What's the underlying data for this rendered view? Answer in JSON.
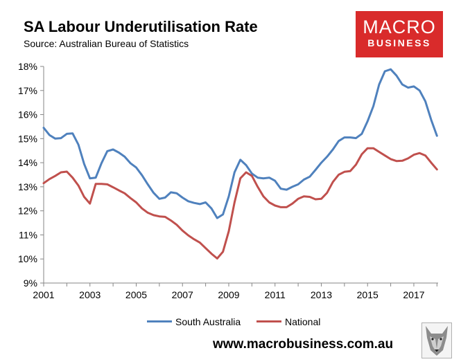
{
  "header": {
    "title": "SA Labour Underutilisation Rate",
    "subtitle": "Source: Australian Bureau of Statistics"
  },
  "logo": {
    "line1": "MACRO",
    "line2": "BUSINESS",
    "background_color": "#d92b2b"
  },
  "footer": {
    "url": "www.macrobusiness.com.au",
    "icon": "wolf-logo-icon"
  },
  "chart_data": {
    "type": "line",
    "title": "SA Labour Underutilisation Rate",
    "xlabel": "",
    "ylabel": "",
    "xlim": [
      2001,
      2018.05
    ],
    "ylim": [
      9,
      18
    ],
    "y_ticks": [
      9,
      10,
      11,
      12,
      13,
      14,
      15,
      16,
      17,
      18
    ],
    "y_tick_labels": [
      "9%",
      "10%",
      "11%",
      "12%",
      "13%",
      "14%",
      "15%",
      "16%",
      "17%",
      "18%"
    ],
    "x_ticks": [
      2001,
      2003,
      2005,
      2007,
      2009,
      2011,
      2013,
      2015,
      2017
    ],
    "x_tick_labels": [
      "2001",
      "2003",
      "2005",
      "2007",
      "2009",
      "2011",
      "2013",
      "2015",
      "2017"
    ],
    "grid": false,
    "legend_position": "bottom",
    "x": [
      2001.0,
      2001.25,
      2001.5,
      2001.75,
      2002.0,
      2002.25,
      2002.5,
      2002.75,
      2003.0,
      2003.25,
      2003.5,
      2003.75,
      2004.0,
      2004.25,
      2004.5,
      2004.75,
      2005.0,
      2005.25,
      2005.5,
      2005.75,
      2006.0,
      2006.25,
      2006.5,
      2006.75,
      2007.0,
      2007.25,
      2007.5,
      2007.75,
      2008.0,
      2008.25,
      2008.5,
      2008.75,
      2009.0,
      2009.25,
      2009.5,
      2009.75,
      2010.0,
      2010.25,
      2010.5,
      2010.75,
      2011.0,
      2011.25,
      2011.5,
      2011.75,
      2012.0,
      2012.25,
      2012.5,
      2012.75,
      2013.0,
      2013.25,
      2013.5,
      2013.75,
      2014.0,
      2014.25,
      2014.5,
      2014.75,
      2015.0,
      2015.25,
      2015.5,
      2015.75,
      2016.0,
      2016.25,
      2016.5,
      2016.75,
      2017.0,
      2017.25,
      2017.5,
      2017.75,
      2018.0
    ],
    "series": [
      {
        "name": "South Australia",
        "color": "#4f81bd",
        "values": [
          15.45,
          15.15,
          15.0,
          15.02,
          15.2,
          15.22,
          14.75,
          13.95,
          13.35,
          13.38,
          13.98,
          14.48,
          14.55,
          14.42,
          14.25,
          13.98,
          13.8,
          13.48,
          13.1,
          12.75,
          12.5,
          12.55,
          12.77,
          12.73,
          12.55,
          12.4,
          12.33,
          12.28,
          12.35,
          12.1,
          11.7,
          11.85,
          12.6,
          13.6,
          14.12,
          13.9,
          13.55,
          13.38,
          13.35,
          13.38,
          13.25,
          12.92,
          12.88,
          13.0,
          13.1,
          13.3,
          13.42,
          13.7,
          14.0,
          14.25,
          14.55,
          14.9,
          15.05,
          15.05,
          15.02,
          15.2,
          15.72,
          16.35,
          17.25,
          17.8,
          17.88,
          17.62,
          17.25,
          17.12,
          17.17,
          17.0,
          16.55,
          15.78,
          15.12
        ]
      },
      {
        "name": "National",
        "color": "#c0504d",
        "values": [
          13.15,
          13.32,
          13.45,
          13.6,
          13.63,
          13.38,
          13.05,
          12.58,
          12.3,
          13.12,
          13.12,
          13.1,
          12.98,
          12.85,
          12.73,
          12.53,
          12.35,
          12.1,
          11.92,
          11.82,
          11.77,
          11.75,
          11.6,
          11.42,
          11.18,
          10.98,
          10.82,
          10.68,
          10.45,
          10.22,
          10.02,
          10.3,
          11.15,
          12.35,
          13.35,
          13.6,
          13.45,
          13.0,
          12.6,
          12.35,
          12.22,
          12.15,
          12.15,
          12.3,
          12.5,
          12.6,
          12.58,
          12.48,
          12.5,
          12.75,
          13.2,
          13.5,
          13.62,
          13.65,
          13.92,
          14.35,
          14.6,
          14.6,
          14.45,
          14.3,
          14.15,
          14.07,
          14.08,
          14.18,
          14.33,
          14.4,
          14.3,
          14.0,
          13.72
        ]
      }
    ]
  }
}
